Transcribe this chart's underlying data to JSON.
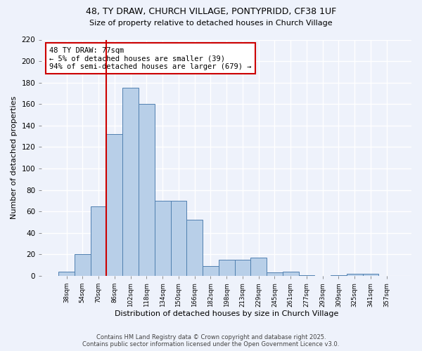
{
  "title1": "48, TY DRAW, CHURCH VILLAGE, PONTYPRIDD, CF38 1UF",
  "title2": "Size of property relative to detached houses in Church Village",
  "xlabel": "Distribution of detached houses by size in Church Village",
  "ylabel": "Number of detached properties",
  "bar_labels": [
    "38sqm",
    "54sqm",
    "70sqm",
    "86sqm",
    "102sqm",
    "118sqm",
    "134sqm",
    "150sqm",
    "166sqm",
    "182sqm",
    "198sqm",
    "213sqm",
    "229sqm",
    "245sqm",
    "261sqm",
    "277sqm",
    "293sqm",
    "309sqm",
    "325sqm",
    "341sqm",
    "357sqm"
  ],
  "bar_values": [
    4,
    20,
    65,
    132,
    175,
    160,
    70,
    70,
    52,
    9,
    15,
    15,
    17,
    3,
    4,
    1,
    0,
    1,
    2,
    2,
    0
  ],
  "bar_color": "#b8cfe8",
  "bar_edge_color": "#5080b0",
  "vline_color": "#cc0000",
  "vline_index": 2.5,
  "annotation_text": "48 TY DRAW: 77sqm\n← 5% of detached houses are smaller (39)\n94% of semi-detached houses are larger (679) →",
  "annotation_box_color": "#ffffff",
  "annotation_box_edge": "#cc0000",
  "ylim": [
    0,
    220
  ],
  "yticks": [
    0,
    20,
    40,
    60,
    80,
    100,
    120,
    140,
    160,
    180,
    200,
    220
  ],
  "background_color": "#eef2fb",
  "grid_color": "#ffffff",
  "footer1": "Contains HM Land Registry data © Crown copyright and database right 2025.",
  "footer2": "Contains public sector information licensed under the Open Government Licence v3.0."
}
